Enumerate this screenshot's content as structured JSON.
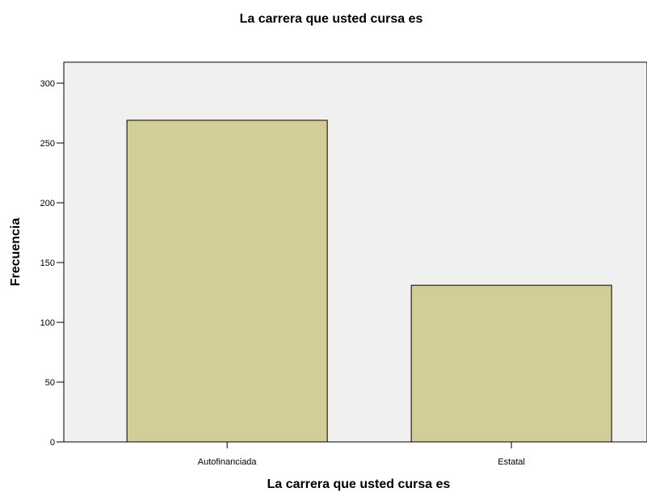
{
  "chart_data": {
    "type": "bar",
    "title": "La carrera que usted cursa es",
    "xlabel": "La carrera que usted cursa es",
    "ylabel": "Frecuencia",
    "categories": [
      "Autofinanciada",
      "Estatal"
    ],
    "values": [
      269,
      131
    ],
    "ylim": [
      0,
      300
    ],
    "yticks": [
      0,
      50,
      100,
      150,
      200,
      250,
      300
    ],
    "grid": false,
    "legend": "none",
    "colors": {
      "plot_background": "#f0f0f0",
      "bar_fill": "#d3ce97",
      "bar_stroke": "#000000"
    }
  }
}
